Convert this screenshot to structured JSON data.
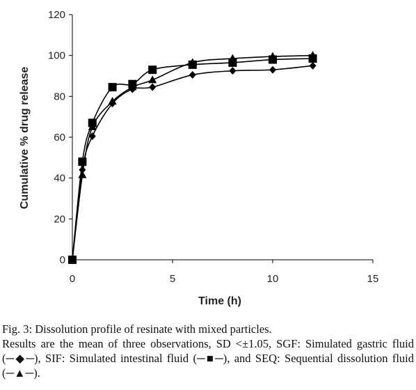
{
  "chart_data": {
    "type": "line",
    "title": "",
    "xlabel": "Time (h)",
    "ylabel": "Cumulative % drug release",
    "xlim": [
      0,
      15
    ],
    "ylim": [
      0,
      120
    ],
    "xticks": [
      0,
      5,
      10,
      15
    ],
    "yticks": [
      0,
      20,
      40,
      60,
      80,
      100,
      120
    ],
    "grid": false,
    "legend": "none",
    "series": [
      {
        "name": "SGF",
        "marker": "diamond",
        "color": "#000000",
        "x": [
          0,
          0.5,
          1,
          2,
          3,
          4,
          6,
          8,
          10,
          12
        ],
        "y": [
          0,
          44,
          60.5,
          76.5,
          83.5,
          84.5,
          90.5,
          92.5,
          93,
          95
        ]
      },
      {
        "name": "SIF",
        "marker": "square",
        "color": "#000000",
        "x": [
          0,
          0.5,
          1,
          2,
          3,
          4,
          6,
          8,
          10,
          12
        ],
        "y": [
          0,
          48,
          67,
          84.5,
          86,
          93,
          95.5,
          96.5,
          98,
          98.5
        ]
      },
      {
        "name": "SEQ",
        "marker": "triangle",
        "color": "#000000",
        "x": [
          0,
          0.5,
          1,
          2,
          3,
          4,
          6,
          8,
          10,
          12
        ],
        "y": [
          0,
          41.5,
          65,
          77.5,
          84.5,
          88,
          96.5,
          98.5,
          99.5,
          100
        ]
      }
    ]
  },
  "caption": {
    "title": "Fig. 3: Dissolution profile of resinate with mixed particles.",
    "body": "Results are the mean of three observations, SD <±1.05, SGF: Simulated gastric fluid (─◆─), SIF: Simulated intestinal fluid (─■─), and SEQ: Sequential dissolution fluid (─▲─)."
  }
}
